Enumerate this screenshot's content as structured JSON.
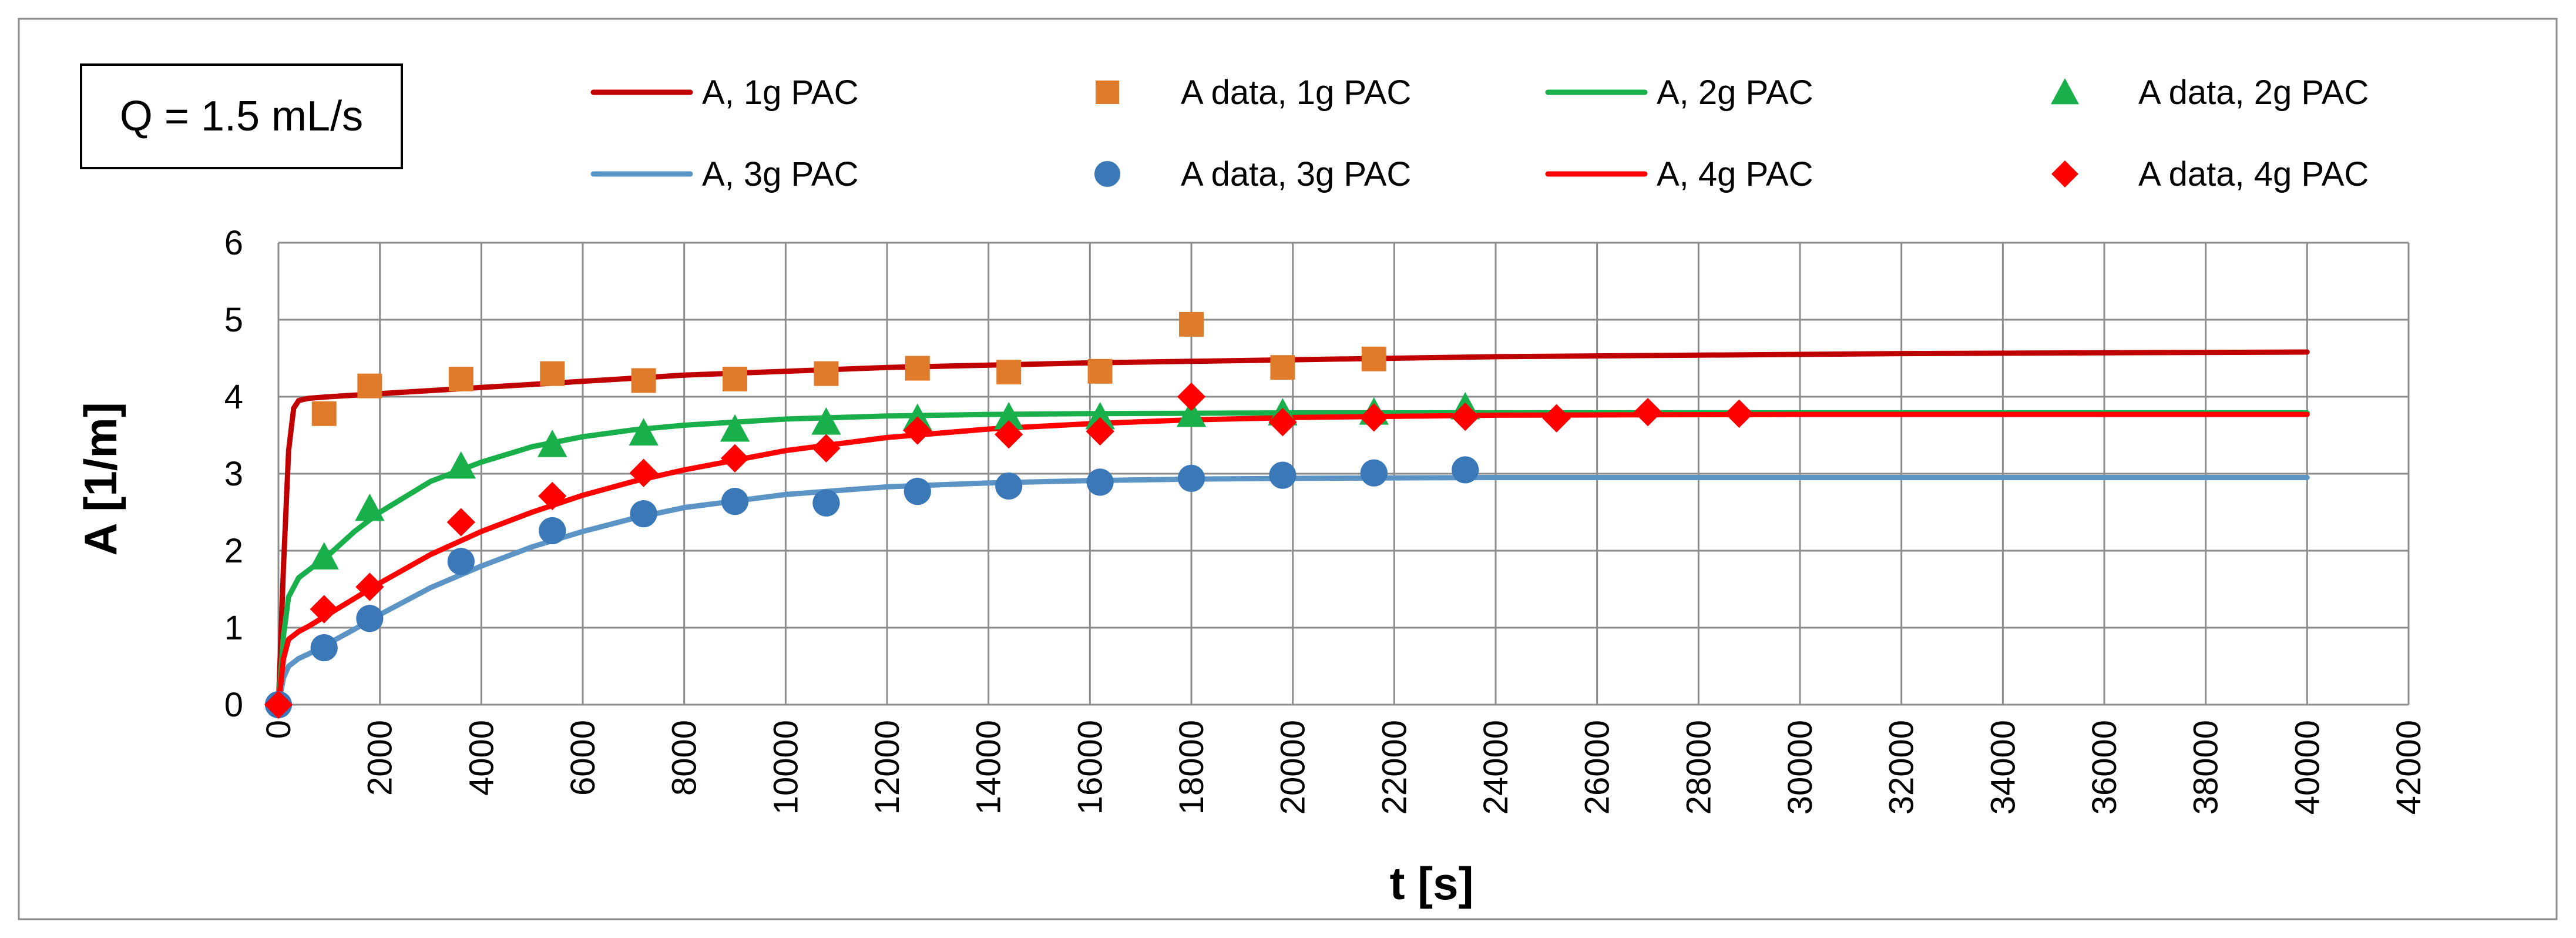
{
  "chart_data": {
    "type": "scatter",
    "title": "",
    "annotation": "Q = 1.5 mL/s",
    "xlabel": "t [s]",
    "ylabel": "A [1/m]",
    "xlim": [
      0,
      42000
    ],
    "ylim": [
      0,
      6
    ],
    "xticks": [
      0,
      2000,
      4000,
      6000,
      8000,
      10000,
      12000,
      14000,
      16000,
      18000,
      20000,
      22000,
      24000,
      26000,
      28000,
      30000,
      32000,
      34000,
      36000,
      38000,
      40000,
      42000
    ],
    "yticks": [
      0,
      1,
      2,
      3,
      4,
      5,
      6
    ],
    "grid": true,
    "legend_position": "top",
    "series": [
      {
        "name": "A, 1g PAC",
        "kind": "line",
        "color": "#C00000",
        "x": [
          0,
          100,
          200,
          300,
          400,
          600,
          1000,
          2000,
          4000,
          8000,
          12000,
          16000,
          20000,
          24000,
          28000,
          32000,
          36000,
          40000
        ],
        "y": [
          0,
          1.8,
          3.3,
          3.85,
          3.95,
          3.98,
          4.0,
          4.04,
          4.12,
          4.28,
          4.38,
          4.44,
          4.48,
          4.52,
          4.54,
          4.56,
          4.57,
          4.58
        ]
      },
      {
        "name": "A data, 1g PAC",
        "kind": "points",
        "marker": "square",
        "color": "#E07B2C",
        "x": [
          900,
          1800,
          3600,
          5400,
          7200,
          9000,
          10800,
          12600,
          14400,
          16200,
          18000,
          19800,
          21600
        ],
        "y": [
          3.78,
          4.14,
          4.23,
          4.3,
          4.21,
          4.23,
          4.3,
          4.37,
          4.32,
          4.33,
          4.94,
          4.38,
          4.49
        ]
      },
      {
        "name": "A, 2g PAC",
        "kind": "line",
        "color": "#19B04B",
        "x": [
          0,
          100,
          200,
          400,
          600,
          1000,
          1500,
          2000,
          3000,
          4000,
          5000,
          6000,
          7000,
          8000,
          10000,
          12000,
          14000,
          16000,
          20000,
          24000,
          30000,
          40000
        ],
        "y": [
          0,
          0.9,
          1.4,
          1.65,
          1.75,
          1.95,
          2.25,
          2.5,
          2.9,
          3.15,
          3.35,
          3.48,
          3.57,
          3.63,
          3.71,
          3.75,
          3.77,
          3.78,
          3.79,
          3.79,
          3.79,
          3.79
        ]
      },
      {
        "name": "A data, 2g PAC",
        "kind": "points",
        "marker": "triangle",
        "color": "#19B04B",
        "x": [
          900,
          1800,
          3600,
          5400,
          7200,
          9000,
          10800,
          12600,
          14400,
          16200,
          18000,
          19800,
          21600,
          23400
        ],
        "y": [
          1.92,
          2.55,
          3.1,
          3.38,
          3.53,
          3.58,
          3.67,
          3.72,
          3.74,
          3.74,
          3.77,
          3.79,
          3.8,
          3.87
        ]
      },
      {
        "name": "A, 3g PAC",
        "kind": "line",
        "color": "#5B94C5",
        "x": [
          0,
          100,
          200,
          400,
          600,
          1000,
          1500,
          2000,
          3000,
          4000,
          5000,
          6000,
          7000,
          8000,
          10000,
          12000,
          14000,
          16000,
          18000,
          20000,
          24000,
          30000,
          40000
        ],
        "y": [
          0,
          0.35,
          0.5,
          0.6,
          0.66,
          0.8,
          0.98,
          1.17,
          1.52,
          1.8,
          2.05,
          2.25,
          2.42,
          2.56,
          2.73,
          2.83,
          2.88,
          2.91,
          2.93,
          2.94,
          2.95,
          2.95,
          2.95
        ]
      },
      {
        "name": "A data, 3g PAC",
        "kind": "points",
        "marker": "circle",
        "color": "#3A78B8",
        "x": [
          0,
          900,
          1800,
          3600,
          5400,
          7200,
          9000,
          10800,
          12600,
          14400,
          16200,
          18000,
          19800,
          21600,
          23400
        ],
        "y": [
          0,
          0.74,
          1.12,
          1.86,
          2.26,
          2.48,
          2.64,
          2.62,
          2.77,
          2.84,
          2.89,
          2.94,
          2.98,
          3.01,
          3.05
        ]
      },
      {
        "name": "A, 4g PAC",
        "kind": "line",
        "color": "#FF0000",
        "x": [
          0,
          100,
          200,
          400,
          600,
          1000,
          1500,
          2000,
          3000,
          4000,
          5000,
          6000,
          7000,
          8000,
          10000,
          12000,
          14000,
          16000,
          18000,
          20000,
          24000,
          30000,
          40000
        ],
        "y": [
          0,
          0.6,
          0.85,
          0.95,
          1.02,
          1.18,
          1.38,
          1.58,
          1.95,
          2.25,
          2.5,
          2.72,
          2.9,
          3.05,
          3.3,
          3.47,
          3.58,
          3.65,
          3.7,
          3.73,
          3.76,
          3.77,
          3.77
        ]
      },
      {
        "name": "A data, 4g PAC",
        "kind": "points",
        "marker": "diamond",
        "color": "#FF0000",
        "x": [
          0,
          900,
          1800,
          3600,
          5400,
          7200,
          9000,
          10800,
          12600,
          14400,
          16200,
          18000,
          19800,
          21600,
          23400,
          25200,
          27000,
          28800
        ],
        "y": [
          0,
          1.24,
          1.53,
          2.37,
          2.71,
          3.01,
          3.2,
          3.33,
          3.56,
          3.51,
          3.55,
          4.0,
          3.67,
          3.73,
          3.74,
          3.72,
          3.8,
          3.78
        ]
      }
    ]
  }
}
